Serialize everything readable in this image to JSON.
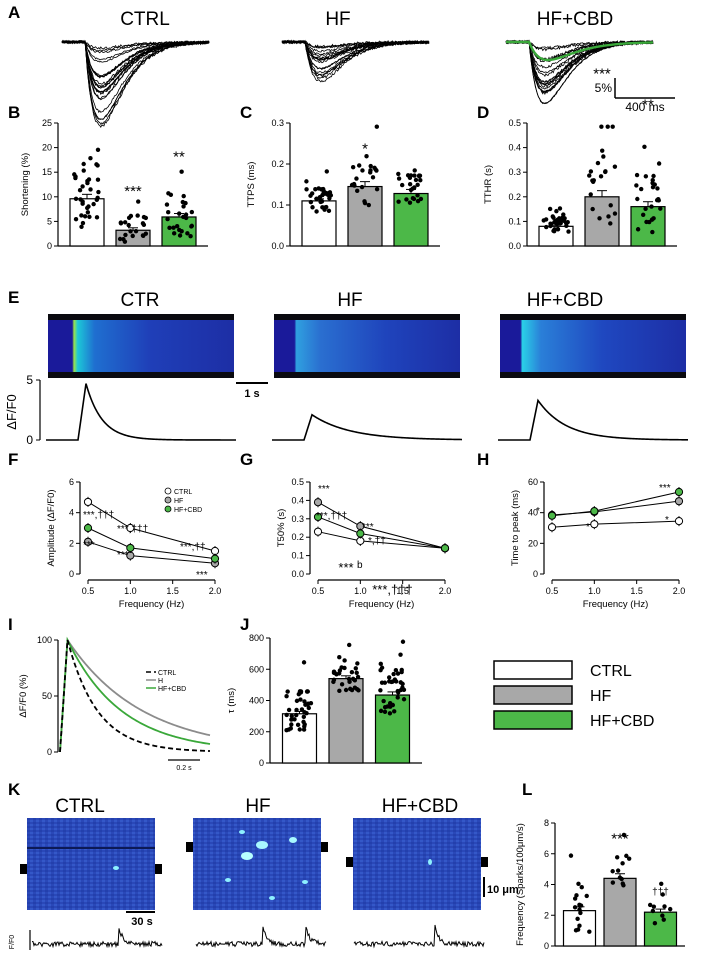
{
  "panels": {
    "A": {
      "label": "A",
      "titles": [
        "CTRL",
        "HF",
        "HF+CBD"
      ],
      "scale_y": "5%",
      "scale_x": "400 ms"
    },
    "B": {
      "label": "B"
    },
    "C": {
      "label": "C"
    },
    "D": {
      "label": "D"
    },
    "E": {
      "label": "E",
      "titles": [
        "CTR",
        "HF",
        "HF+CBD"
      ],
      "scale": "1 s",
      "ylabel": "ΔF/F0",
      "ytick_top": "5",
      "ytick_bottom": "0"
    },
    "F": {
      "label": "F"
    },
    "G": {
      "label": "G"
    },
    "H": {
      "label": "H"
    },
    "I": {
      "label": "I",
      "ylabel": "ΔF/F0 (%)",
      "scale": "0.2 s",
      "legend": [
        "CTRL",
        "H",
        "HF+CBD"
      ]
    },
    "J": {
      "label": "J"
    },
    "K": {
      "label": "K",
      "titles": [
        "CTRL",
        "HF",
        "HF+CBD"
      ],
      "scale_x": "30 s",
      "scale_y": "10 μm",
      "ylabel": "F/F0"
    },
    "L": {
      "label": "L"
    }
  },
  "legend": {
    "items": [
      {
        "name": "CTRL",
        "color": "#ffffff"
      },
      {
        "name": "HF",
        "color": "#a8a8a8"
      },
      {
        "name": "HF+CBD",
        "color": "#4cb848"
      }
    ]
  },
  "colors": {
    "ctrl": "#ffffff",
    "hf": "#a8a8a8",
    "cbd": "#4cb848"
  },
  "chart_data": [
    {
      "id": "B",
      "type": "bar",
      "categories": [
        "CTRL",
        "HF",
        "HF+CBD"
      ],
      "values": [
        9.6,
        3.2,
        5.9
      ],
      "ylabel": "Shortening (%)",
      "ylim": [
        0,
        25
      ],
      "yticks": [
        "0",
        "5",
        "10",
        "15",
        "20",
        "25"
      ],
      "stars": [
        "",
        "***",
        "**"
      ]
    },
    {
      "id": "C",
      "type": "bar",
      "categories": [
        "CTRL",
        "HF",
        "HF+CBD"
      ],
      "values": [
        0.11,
        0.145,
        0.128
      ],
      "ylabel": "TTPS (ms)",
      "ylim": [
        0,
        0.3
      ],
      "yticks": [
        "0.0",
        "0.1",
        "0.2",
        "0.3"
      ],
      "stars": [
        "",
        "*",
        ""
      ]
    },
    {
      "id": "D",
      "type": "bar",
      "categories": [
        "CTRL",
        "HF",
        "HF+CBD"
      ],
      "values": [
        0.08,
        0.2,
        0.16
      ],
      "ylabel": "TTHR (s)",
      "ylim": [
        0,
        0.5
      ],
      "yticks": [
        "0.0",
        "0.1",
        "0.2",
        "0.3",
        "0.4",
        "0.5"
      ],
      "stars": [
        "",
        "***",
        "**"
      ]
    },
    {
      "id": "F",
      "type": "line",
      "x": [
        0.5,
        1.0,
        2.0
      ],
      "ylabel": "Amplitude (ΔF/F0)",
      "xlabel": "Frequency (Hz)",
      "ylim": [
        0,
        6
      ],
      "yticks": [
        "0",
        "2",
        "4",
        "6"
      ],
      "xticks": [
        "0.5",
        "1.0",
        "1.5",
        "2.0"
      ],
      "series": [
        {
          "name": "CTRL",
          "values": [
            4.7,
            3.0,
            1.5
          ]
        },
        {
          "name": "HF",
          "values": [
            2.1,
            1.2,
            0.7
          ]
        },
        {
          "name": "HF+CBD",
          "values": [
            3.0,
            1.7,
            1.0
          ]
        }
      ],
      "legend": [
        "CTRL",
        "HF",
        "HF+CBD"
      ],
      "annotations": [
        "***,†††",
        "***",
        "***,†††",
        "***",
        "***,††",
        "***"
      ]
    },
    {
      "id": "G",
      "type": "line",
      "x": [
        0.5,
        1.0,
        2.0
      ],
      "ylabel": "T50% (s)",
      "xlabel": "Frequency (Hz)",
      "ylim": [
        0,
        0.5
      ],
      "yticks": [
        "0.0",
        "0.1",
        "0.2",
        "0.3",
        "0.4",
        "0.5"
      ],
      "xticks": [
        "0.5",
        "1.0",
        "1.5",
        "2.0"
      ],
      "series": [
        {
          "name": "CTRL",
          "values": [
            0.23,
            0.18,
            0.14
          ]
        },
        {
          "name": "HF",
          "values": [
            0.39,
            0.26,
            0.14
          ]
        },
        {
          "name": "HF+CBD",
          "values": [
            0.31,
            0.22,
            0.14
          ]
        }
      ],
      "annotations": [
        "***",
        "***,†††",
        "***",
        "*,††",
        "b"
      ]
    },
    {
      "id": "H",
      "type": "line",
      "x": [
        0.5,
        1.0,
        2.0
      ],
      "ylabel": "Time to peak (ms)",
      "xlabel": "Frequency (Hz)",
      "ylim": [
        0,
        60
      ],
      "yticks": [
        "0",
        "20",
        "40",
        "60"
      ],
      "xticks": [
        "0.5",
        "1.0",
        "1.5",
        "2.0"
      ],
      "series": [
        {
          "name": "CTRL",
          "values": [
            30.5,
            32.5,
            34.5
          ]
        },
        {
          "name": "HF",
          "values": [
            38.5,
            40.5,
            47.5
          ]
        },
        {
          "name": "HF+CBD",
          "values": [
            38.0,
            41.0,
            53.5
          ]
        }
      ],
      "annotations": [
        "*",
        "*",
        "***",
        "*"
      ]
    },
    {
      "id": "I",
      "type": "line",
      "ylabel": "ΔF/F0 (%)",
      "ylim": [
        0,
        100
      ],
      "yticks": [
        "0",
        "50",
        "100"
      ],
      "series": [
        {
          "name": "CTRL",
          "style": "dashed"
        },
        {
          "name": "H",
          "style": "gray"
        },
        {
          "name": "HF+CBD",
          "style": "green"
        }
      ]
    },
    {
      "id": "J",
      "type": "bar",
      "categories": [
        "CTRL",
        "HF",
        "HF+CBD"
      ],
      "values": [
        315,
        540,
        435
      ],
      "ylabel": "τ (ms)",
      "ylim": [
        0,
        800
      ],
      "yticks": [
        "0",
        "200",
        "400",
        "600",
        "800"
      ],
      "stars": [
        "",
        "***",
        "***,†††"
      ]
    },
    {
      "id": "L",
      "type": "bar",
      "categories": [
        "CTRL",
        "HF",
        "HF+CBD"
      ],
      "values": [
        2.3,
        4.4,
        2.2
      ],
      "ylabel": "Frequency (Sparks/100μm/s)",
      "ylim": [
        0,
        8
      ],
      "yticks": [
        "0",
        "2",
        "4",
        "6",
        "8"
      ],
      "stars": [
        "",
        "***",
        "†††"
      ]
    }
  ]
}
